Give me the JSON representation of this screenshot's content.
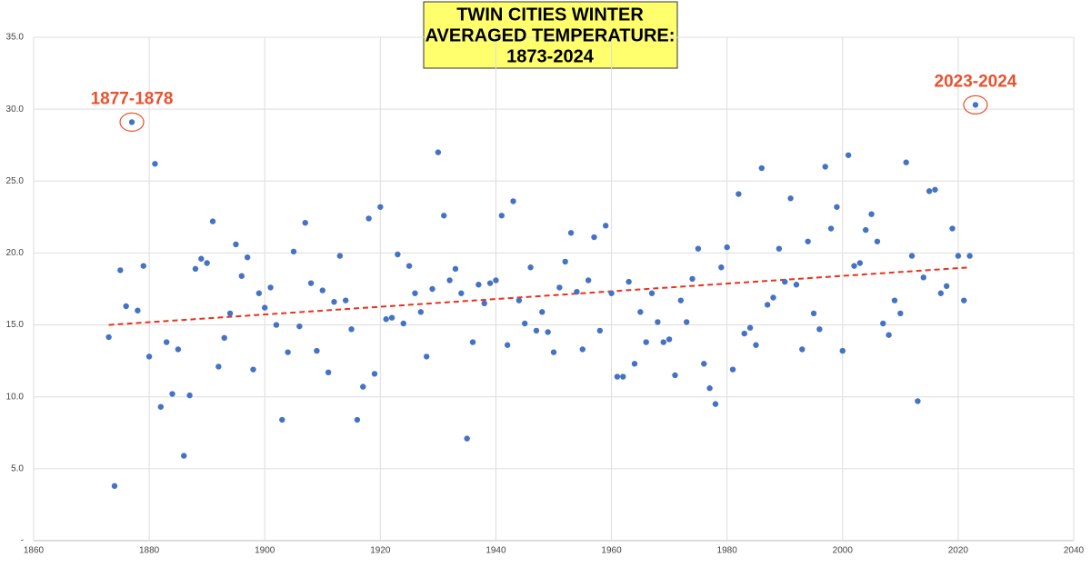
{
  "chart_data": {
    "type": "scatter",
    "title_lines": [
      "TWIN CITIES WINTER",
      "AVERAGED TEMPERATURE:",
      "1873-2024"
    ],
    "x": [
      1873,
      1874,
      1875,
      1876,
      1877,
      1878,
      1879,
      1880,
      1881,
      1882,
      1883,
      1884,
      1885,
      1886,
      1887,
      1888,
      1889,
      1890,
      1891,
      1892,
      1893,
      1894,
      1895,
      1896,
      1897,
      1898,
      1899,
      1900,
      1901,
      1902,
      1903,
      1904,
      1905,
      1906,
      1907,
      1908,
      1909,
      1910,
      1911,
      1912,
      1913,
      1914,
      1915,
      1916,
      1917,
      1918,
      1919,
      1920,
      1921,
      1922,
      1923,
      1924,
      1925,
      1926,
      1927,
      1928,
      1929,
      1930,
      1931,
      1932,
      1933,
      1934,
      1935,
      1936,
      1937,
      1938,
      1939,
      1940,
      1941,
      1942,
      1943,
      1944,
      1945,
      1946,
      1947,
      1948,
      1949,
      1950,
      1951,
      1952,
      1953,
      1954,
      1955,
      1956,
      1957,
      1958,
      1959,
      1960,
      1961,
      1962,
      1963,
      1964,
      1965,
      1966,
      1967,
      1968,
      1969,
      1970,
      1971,
      1972,
      1973,
      1974,
      1975,
      1976,
      1977,
      1978,
      1979,
      1980,
      1981,
      1982,
      1983,
      1984,
      1985,
      1986,
      1987,
      1988,
      1989,
      1990,
      1991,
      1992,
      1993,
      1994,
      1995,
      1996,
      1997,
      1998,
      1999,
      2000,
      2001,
      2002,
      2003,
      2004,
      2005,
      2006,
      2007,
      2008,
      2009,
      2010,
      2011,
      2012,
      2013,
      2014,
      2015,
      2016,
      2017,
      2018,
      2019,
      2020,
      2021,
      2022,
      2023
    ],
    "values": [
      14.15,
      3.8,
      18.8,
      16.3,
      29.1,
      16.0,
      19.1,
      12.8,
      26.2,
      9.3,
      13.8,
      10.2,
      13.3,
      5.9,
      10.1,
      18.9,
      19.6,
      19.3,
      22.2,
      12.1,
      14.1,
      15.8,
      20.6,
      18.4,
      19.7,
      11.9,
      17.2,
      16.2,
      17.6,
      15.0,
      8.4,
      13.1,
      20.1,
      14.9,
      22.1,
      17.9,
      13.2,
      17.4,
      11.7,
      16.6,
      19.8,
      16.7,
      14.7,
      8.4,
      10.7,
      22.4,
      11.6,
      23.2,
      15.4,
      15.5,
      19.9,
      15.1,
      19.1,
      17.2,
      15.9,
      12.8,
      17.5,
      27.0,
      22.6,
      18.1,
      18.9,
      17.2,
      7.1,
      13.8,
      17.8,
      16.5,
      17.9,
      18.1,
      22.6,
      13.6,
      23.6,
      16.7,
      15.1,
      19.0,
      14.6,
      15.9,
      14.5,
      13.1,
      17.6,
      19.4,
      21.4,
      17.3,
      13.3,
      18.1,
      21.1,
      14.6,
      21.9,
      17.2,
      11.4,
      11.4,
      18.0,
      12.3,
      15.9,
      13.8,
      17.2,
      15.2,
      13.8,
      14.0,
      11.5,
      16.7,
      15.2,
      18.2,
      20.3,
      12.3,
      10.6,
      9.5,
      19.0,
      20.4,
      11.9,
      24.1,
      14.4,
      14.8,
      13.6,
      25.9,
      16.4,
      16.9,
      20.3,
      18.0,
      23.8,
      17.8,
      13.3,
      20.8,
      15.8,
      14.7,
      26.0,
      21.7,
      23.2,
      13.2,
      26.8,
      19.1,
      19.3,
      21.6,
      22.7,
      20.8,
      15.1,
      14.3,
      16.7,
      15.8,
      26.3,
      19.8,
      9.7,
      18.3,
      24.3,
      24.4,
      17.2,
      17.7,
      21.7,
      19.8,
      16.7,
      19.8,
      30.3
    ],
    "color": "#4472c4",
    "trendline": {
      "x": [
        1873,
        2022
      ],
      "y": [
        15.0,
        19.0
      ],
      "color": "#e8321e"
    },
    "annotations": [
      {
        "text": "1877-1878",
        "point": 4,
        "color": "#e8522e"
      },
      {
        "text": "2023-2024",
        "point": 150,
        "color": "#e8522e"
      }
    ],
    "xlim": [
      1860,
      2040
    ],
    "xticks": [
      1860,
      1880,
      1900,
      1920,
      1940,
      1960,
      1980,
      2000,
      2020,
      2040
    ],
    "ylim": [
      0,
      35
    ],
    "yticks": [
      {
        "value": 0,
        "label": "-"
      },
      {
        "value": 5,
        "label": "5.0"
      },
      {
        "value": 10,
        "label": "10.0"
      },
      {
        "value": 15,
        "label": "15.0"
      },
      {
        "value": 20,
        "label": "20.0"
      },
      {
        "value": 25,
        "label": "25.0"
      },
      {
        "value": 30,
        "label": "30.0"
      },
      {
        "value": 35,
        "label": "35.0"
      }
    ],
    "grid": true
  }
}
